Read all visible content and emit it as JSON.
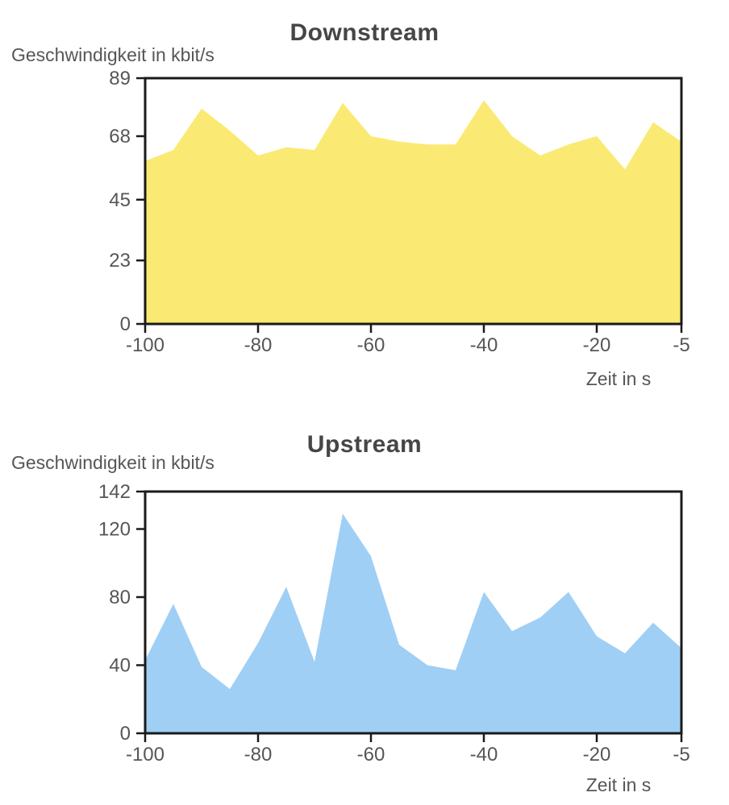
{
  "chart_data": [
    {
      "type": "area",
      "title": "Downstream",
      "ylabel": "Geschwindigkeit in kbit/s",
      "xlabel": "Zeit in s",
      "x": [
        -100,
        -95,
        -90,
        -85,
        -80,
        -75,
        -70,
        -65,
        -60,
        -55,
        -50,
        -45,
        -40,
        -35,
        -30,
        -25,
        -20,
        -15,
        -10,
        -5
      ],
      "values": [
        59,
        63,
        78,
        70,
        61,
        64,
        63,
        80,
        68,
        66,
        65,
        65,
        81,
        68,
        61,
        65,
        68,
        56,
        73,
        66
      ],
      "xlim": [
        -100,
        -5
      ],
      "ylim": [
        0,
        89
      ],
      "x_ticks": [
        -100,
        -80,
        -60,
        -40,
        -20,
        -5
      ],
      "y_ticks": [
        0,
        23,
        45,
        68,
        89
      ],
      "fill": "#faea73",
      "axis_color": "#1a1a1a",
      "label_color": "#565656",
      "grid": false,
      "legend": null
    },
    {
      "type": "area",
      "title": "Upstream",
      "ylabel": "Geschwindigkeit in kbit/s",
      "xlabel": "Zeit in s",
      "x": [
        -100,
        -95,
        -90,
        -85,
        -80,
        -75,
        -70,
        -65,
        -60,
        -55,
        -50,
        -45,
        -40,
        -35,
        -30,
        -25,
        -20,
        -15,
        -10,
        -5
      ],
      "values": [
        43,
        76,
        39,
        26,
        53,
        86,
        42,
        129,
        104,
        52,
        40,
        37,
        83,
        60,
        68,
        83,
        57,
        47,
        65,
        50
      ],
      "xlim": [
        -100,
        -5
      ],
      "ylim": [
        0,
        142
      ],
      "x_ticks": [
        -100,
        -80,
        -60,
        -40,
        -20,
        -5
      ],
      "y_ticks": [
        0,
        40,
        80,
        120,
        142
      ],
      "fill": "#9fcff5",
      "axis_color": "#1a1a1a",
      "label_color": "#565656",
      "grid": false,
      "legend": null
    }
  ]
}
